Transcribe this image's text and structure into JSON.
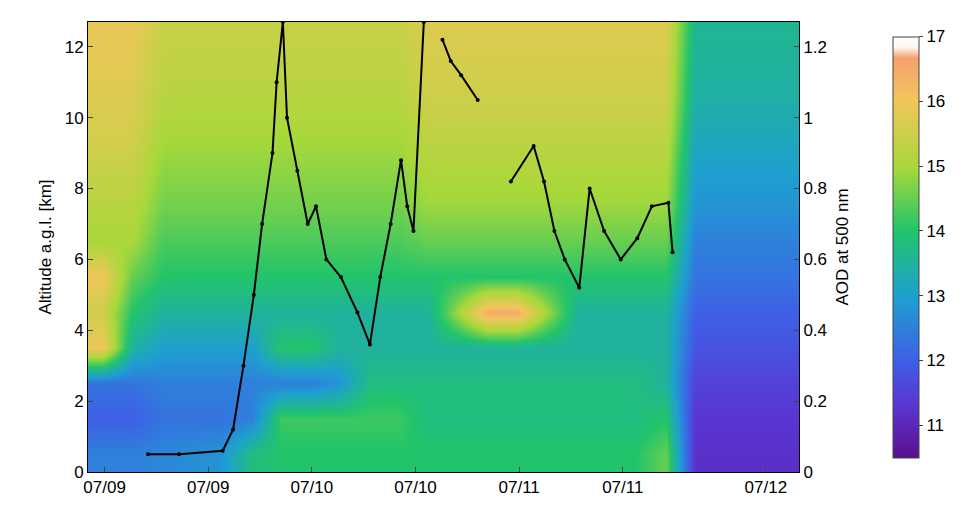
{
  "chart_data": {
    "type": "heatmap",
    "y_label": "Altitude a.g.l. [km]",
    "y2_label": "AOD at 500 nm",
    "xlim": [
      9.12,
      12.55
    ],
    "xticks": [
      {
        "value": 9.2,
        "label": "07/09"
      },
      {
        "value": 9.7,
        "label": "07/09"
      },
      {
        "value": 10.2,
        "label": "07/10"
      },
      {
        "value": 10.7,
        "label": "07/10"
      },
      {
        "value": 11.2,
        "label": "07/11"
      },
      {
        "value": 11.7,
        "label": "07/11"
      },
      {
        "value": 12.39,
        "label": "07/12"
      }
    ],
    "ylim": [
      0,
      12.7
    ],
    "yticks": [
      0,
      2,
      4,
      6,
      8,
      10,
      12
    ],
    "y2lim": [
      0,
      1.27
    ],
    "y2ticks": [
      0,
      0.2,
      0.4,
      0.6,
      0.8,
      1,
      1.2
    ],
    "cells": {
      "x": [
        9.19,
        9.33,
        9.48,
        9.62,
        9.76,
        9.91,
        10.05,
        10.19,
        10.33,
        10.48,
        10.62,
        10.76,
        10.91,
        11.05,
        11.19,
        11.33,
        11.48,
        11.62,
        11.76,
        11.91,
        12.05,
        12.19,
        12.33,
        12.48
      ],
      "y": [
        0.5,
        1.5,
        2.5,
        3.5,
        4.5,
        5.5,
        6.5,
        7.5,
        8.5,
        9.5,
        10.5,
        11.5,
        12.5
      ],
      "z": [
        [
          12.5,
          12.5,
          12.6,
          12.7,
          12.8,
          13.8,
          14.0,
          14.0,
          14.0,
          14.0,
          14.0,
          14.0,
          14.0,
          14.0,
          14.0,
          14.0,
          14.0,
          14.0,
          14.0,
          14.5,
          11.2,
          11.2,
          11.2,
          11.2
        ],
        [
          12.0,
          12.0,
          12.3,
          12.3,
          12.3,
          12.5,
          14.2,
          14.2,
          14.2,
          14.2,
          14.2,
          13.8,
          13.8,
          13.8,
          13.8,
          13.8,
          13.8,
          13.8,
          13.8,
          14.0,
          11.3,
          11.3,
          11.3,
          11.3
        ],
        [
          12.3,
          12.3,
          12.5,
          12.5,
          12.5,
          12.5,
          12.5,
          12.5,
          12.8,
          13.8,
          13.8,
          13.8,
          13.8,
          13.8,
          13.8,
          13.8,
          13.8,
          13.8,
          13.8,
          13.5,
          11.5,
          11.5,
          11.5,
          11.5
        ],
        [
          16.0,
          13.5,
          13.0,
          13.0,
          13.0,
          13.0,
          14.0,
          14.0,
          13.5,
          13.5,
          13.5,
          13.5,
          13.5,
          13.5,
          13.5,
          13.5,
          13.5,
          13.5,
          13.5,
          13.5,
          11.8,
          11.8,
          11.8,
          11.8
        ],
        [
          15.5,
          14.0,
          13.5,
          13.5,
          13.5,
          13.5,
          13.5,
          13.5,
          13.5,
          13.5,
          13.5,
          13.5,
          15.0,
          16.5,
          16.5,
          15.0,
          13.5,
          13.5,
          13.5,
          13.5,
          12.0,
          12.0,
          12.0,
          12.0
        ],
        [
          16.0,
          14.5,
          14.0,
          14.0,
          14.0,
          14.0,
          14.0,
          14.0,
          14.0,
          14.0,
          14.0,
          14.0,
          14.0,
          14.0,
          14.0,
          14.0,
          14.0,
          14.0,
          14.0,
          14.0,
          12.3,
          12.3,
          12.3,
          12.3
        ],
        [
          15.0,
          15.0,
          14.3,
          14.3,
          14.3,
          14.3,
          14.3,
          14.3,
          14.3,
          14.3,
          14.3,
          14.5,
          14.5,
          14.5,
          14.5,
          14.5,
          14.5,
          14.5,
          14.5,
          14.5,
          12.5,
          12.5,
          12.5,
          12.5
        ],
        [
          15.2,
          15.2,
          14.6,
          14.6,
          14.6,
          14.6,
          14.6,
          14.6,
          14.6,
          14.6,
          14.6,
          14.9,
          14.9,
          14.9,
          14.9,
          14.9,
          14.9,
          14.9,
          14.9,
          14.9,
          12.8,
          12.8,
          12.8,
          12.8
        ],
        [
          15.4,
          15.4,
          14.8,
          14.8,
          14.8,
          14.8,
          14.8,
          14.8,
          14.8,
          14.8,
          14.8,
          15.1,
          15.1,
          15.1,
          15.1,
          15.1,
          15.1,
          15.1,
          15.1,
          15.1,
          13.0,
          13.0,
          13.0,
          13.0
        ],
        [
          15.6,
          15.6,
          15.0,
          15.0,
          15.0,
          15.0,
          15.0,
          15.0,
          15.0,
          15.0,
          15.0,
          15.3,
          15.3,
          15.3,
          15.3,
          15.3,
          15.3,
          15.3,
          15.3,
          15.3,
          13.2,
          13.2,
          13.2,
          13.2
        ],
        [
          15.7,
          15.7,
          15.2,
          15.2,
          15.2,
          15.2,
          15.2,
          15.2,
          15.2,
          15.2,
          15.2,
          15.5,
          15.5,
          15.5,
          15.5,
          15.5,
          15.5,
          15.5,
          15.5,
          15.5,
          13.4,
          13.4,
          13.4,
          13.4
        ],
        [
          15.8,
          15.8,
          15.3,
          15.3,
          15.3,
          15.3,
          15.3,
          15.3,
          15.3,
          15.3,
          15.3,
          15.6,
          15.6,
          15.6,
          15.6,
          15.6,
          15.6,
          15.6,
          15.6,
          15.6,
          13.5,
          13.5,
          13.5,
          13.5
        ],
        [
          15.9,
          15.9,
          15.4,
          15.4,
          15.4,
          15.4,
          15.4,
          15.4,
          15.4,
          15.4,
          15.4,
          15.7,
          15.7,
          15.7,
          15.7,
          15.7,
          15.7,
          15.7,
          15.7,
          15.7,
          13.6,
          13.6,
          13.6,
          13.6
        ]
      ],
      "zlim": [
        10.5,
        17
      ],
      "zticks": [
        11,
        12,
        13,
        14,
        15,
        16,
        17
      ]
    },
    "series": [
      {
        "type": "scatter",
        "axis": "y2",
        "color": "#000000",
        "marker": "circle",
        "line_style": "solid",
        "x": [
          9.41,
          9.56,
          9.77,
          9.82,
          9.87,
          9.92,
          9.96,
          10.01,
          10.03,
          10.06,
          10.08,
          10.13,
          10.18,
          10.22,
          10.27,
          10.34,
          10.42,
          10.48,
          10.53,
          10.58,
          10.63,
          10.66,
          10.69,
          10.74,
          10.78,
          10.83,
          10.87,
          10.92,
          11.0,
          11.08,
          11.16,
          11.27,
          11.32,
          11.37,
          11.42,
          11.49,
          11.54,
          11.61,
          11.69,
          11.77,
          11.84,
          11.92,
          11.94
        ],
        "values": [
          0.05,
          0.05,
          0.06,
          0.12,
          0.3,
          0.5,
          0.7,
          0.9,
          1.1,
          1.27,
          1.0,
          0.85,
          0.7,
          0.75,
          0.6,
          0.55,
          0.45,
          0.36,
          0.55,
          0.7,
          0.88,
          0.75,
          0.68,
          1.27,
          null,
          1.22,
          1.16,
          1.12,
          1.05,
          null,
          0.82,
          0.92,
          0.82,
          0.68,
          0.6,
          0.52,
          0.8,
          0.68,
          0.6,
          0.66,
          0.75,
          0.76,
          0.62
        ]
      }
    ],
    "legend": "none"
  }
}
